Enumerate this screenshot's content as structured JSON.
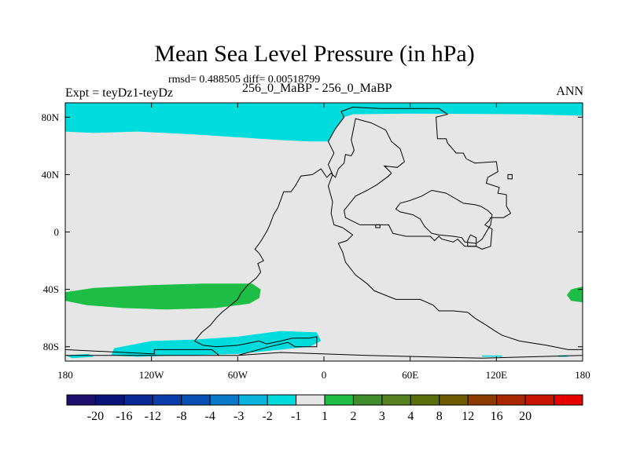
{
  "header": {
    "title": "Mean Sea Level Pressure (in hPa)",
    "stats": "rmsd= 0.488505 diff= 0.00518799",
    "experiment": "Expt = teyDz1-teyDz",
    "comparison": "256_0_MaBP - 256_0_MaBP",
    "season": "ANN"
  },
  "chart_data": {
    "type": "heatmap",
    "title": "Mean Sea Level Pressure (in hPa)",
    "xlim": [
      -180,
      180
    ],
    "ylim": [
      -90,
      90
    ],
    "xticks": [
      {
        "value": -180,
        "label": "180"
      },
      {
        "value": -120,
        "label": "120W"
      },
      {
        "value": -60,
        "label": "60W"
      },
      {
        "value": 0,
        "label": "0"
      },
      {
        "value": 60,
        "label": "60E"
      },
      {
        "value": 120,
        "label": "120E"
      },
      {
        "value": 180,
        "label": "180"
      }
    ],
    "yticks": [
      {
        "value": 80,
        "label": "80N"
      },
      {
        "value": 40,
        "label": "40N"
      },
      {
        "value": 0,
        "label": "0"
      },
      {
        "value": -40,
        "label": "40S"
      },
      {
        "value": -80,
        "label": "80S"
      }
    ],
    "background_color": "#e6e6e6",
    "coast_color": "#000000",
    "colorbar": {
      "colors": [
        "#1e0e6e",
        "#0a1478",
        "#0a2896",
        "#0a3caa",
        "#0a50b4",
        "#0a78c8",
        "#0ab4dc",
        "#00dcdc",
        "#e6e6e6",
        "#1ebe46",
        "#418c2d",
        "#55821e",
        "#5a6e0a",
        "#6e5a00",
        "#8c3c00",
        "#aa2800",
        "#c81400",
        "#e60000"
      ],
      "labels": [
        "-20",
        "-16",
        "-12",
        "-8",
        "-4",
        "-3",
        "-2",
        "-1",
        "1",
        "2",
        "3",
        "4",
        "8",
        "12",
        "16",
        "20"
      ]
    },
    "regions": [
      {
        "name": "arctic-cyan-region",
        "bin": "-2 to -1",
        "color": "#00dcdc",
        "points": [
          [
            -180,
            90
          ],
          [
            180,
            90
          ],
          [
            180,
            81
          ],
          [
            140,
            82
          ],
          [
            60,
            82.5
          ],
          [
            20,
            82
          ],
          [
            14,
            80
          ],
          [
            8,
            72
          ],
          [
            3,
            63
          ],
          [
            -8,
            63
          ],
          [
            -30,
            64
          ],
          [
            -60,
            66
          ],
          [
            -90,
            68
          ],
          [
            -130,
            70
          ],
          [
            -160,
            69
          ],
          [
            -180,
            70
          ]
        ]
      },
      {
        "name": "southern-ocean-green-region",
        "bin": "1 to 2",
        "color": "#1ebe46",
        "points": [
          [
            -180,
            -42
          ],
          [
            -160,
            -39
          ],
          [
            -120,
            -37
          ],
          [
            -85,
            -36
          ],
          [
            -50,
            -36
          ],
          [
            -44,
            -40
          ],
          [
            -45,
            -46
          ],
          [
            -52,
            -50
          ],
          [
            -75,
            -53
          ],
          [
            -110,
            -54
          ],
          [
            -140,
            -53
          ],
          [
            -165,
            -51
          ],
          [
            -180,
            -48
          ]
        ]
      },
      {
        "name": "east-edge-green-region",
        "bin": "1 to 2",
        "color": "#1ebe46",
        "points": [
          [
            180,
            -38
          ],
          [
            172,
            -40
          ],
          [
            169,
            -44
          ],
          [
            172,
            -48
          ],
          [
            180,
            -49
          ]
        ]
      },
      {
        "name": "antarctic-cyan-region",
        "bin": "-2 to -1",
        "color": "#00dcdc",
        "points": [
          [
            -148,
            -86
          ],
          [
            -146,
            -81
          ],
          [
            -120,
            -76
          ],
          [
            -90,
            -75
          ],
          [
            -60,
            -73
          ],
          [
            -30,
            -69
          ],
          [
            -5,
            -70
          ],
          [
            -2,
            -76
          ],
          [
            -10,
            -80
          ],
          [
            -30,
            -82
          ],
          [
            -60,
            -85
          ],
          [
            -100,
            -86
          ],
          [
            -130,
            -87
          ]
        ]
      },
      {
        "name": "small-cyan-patch-a",
        "bin": "-2 to -1",
        "color": "#00dcdc",
        "points": [
          [
            -180,
            -86
          ],
          [
            -164,
            -85
          ],
          [
            -160,
            -87
          ],
          [
            -175,
            -88
          ]
        ]
      },
      {
        "name": "small-cyan-patch-b",
        "bin": "-2 to -1",
        "color": "#00dcdc",
        "points": [
          [
            110,
            -86
          ],
          [
            124,
            -86
          ],
          [
            124,
            -87
          ],
          [
            110,
            -87
          ]
        ]
      },
      {
        "name": "small-cyan-patch-c",
        "bin": "-2 to -1",
        "color": "#00dcdc",
        "points": [
          [
            163,
            -86
          ],
          [
            170,
            -86
          ],
          [
            170,
            -87
          ],
          [
            163,
            -87
          ]
        ]
      }
    ],
    "coastlines": [
      {
        "name": "pangea-coastline",
        "closed": true,
        "points": [
          [
            12,
            84
          ],
          [
            20,
            87
          ],
          [
            40,
            86
          ],
          [
            80,
            86
          ],
          [
            86,
            82
          ],
          [
            78,
            80
          ],
          [
            79,
            65
          ],
          [
            85,
            65
          ],
          [
            86,
            62
          ],
          [
            92,
            55
          ],
          [
            97,
            55
          ],
          [
            99,
            51
          ],
          [
            105,
            48
          ],
          [
            120,
            49
          ],
          [
            121,
            42
          ],
          [
            114,
            38
          ],
          [
            113,
            34
          ],
          [
            122,
            31
          ],
          [
            121,
            27
          ],
          [
            127,
            26
          ],
          [
            127,
            18
          ],
          [
            130,
            13
          ],
          [
            125,
            10
          ],
          [
            116,
            10
          ],
          [
            115,
            8
          ],
          [
            112,
            5
          ],
          [
            117,
            2
          ],
          [
            116,
            -10
          ],
          [
            110,
            -12
          ],
          [
            106,
            -10
          ],
          [
            98,
            -10
          ],
          [
            93,
            -5
          ],
          [
            90,
            -7
          ],
          [
            82,
            -5
          ],
          [
            80,
            -3
          ],
          [
            77,
            -6
          ],
          [
            74,
            -3
          ],
          [
            57,
            -3
          ],
          [
            48,
            -1
          ],
          [
            45,
            5
          ],
          [
            25,
            5
          ],
          [
            15,
            10
          ],
          [
            14,
            15
          ],
          [
            22,
            25
          ],
          [
            30,
            29
          ],
          [
            37,
            33
          ],
          [
            45,
            39
          ],
          [
            47,
            41
          ],
          [
            42,
            46
          ],
          [
            51,
            45
          ],
          [
            56,
            49
          ],
          [
            53,
            58
          ],
          [
            47,
            63
          ],
          [
            43,
            71
          ],
          [
            33,
            76
          ],
          [
            22,
            79
          ],
          [
            19,
            64
          ],
          [
            21,
            57
          ],
          [
            19,
            53
          ],
          [
            15,
            54
          ],
          [
            14,
            48
          ],
          [
            10,
            44
          ],
          [
            8,
            38
          ],
          [
            5,
            41
          ],
          [
            2,
            38
          ],
          [
            -2,
            44
          ],
          [
            -8,
            40
          ],
          [
            -16,
            39
          ],
          [
            -20,
            32
          ],
          [
            -23,
            28
          ],
          [
            -28,
            28
          ],
          [
            -32,
            17
          ],
          [
            -35,
            12
          ],
          [
            -38,
            4
          ],
          [
            -40,
            0
          ],
          [
            -43,
            -5
          ],
          [
            -45,
            -8
          ],
          [
            -48,
            -12
          ],
          [
            -45,
            -15
          ],
          [
            -42,
            -20
          ],
          [
            -46,
            -22
          ],
          [
            -44,
            -28
          ],
          [
            -47,
            -32
          ],
          [
            -53,
            -37
          ],
          [
            -58,
            -43
          ],
          [
            -60,
            -47
          ],
          [
            -66,
            -52
          ],
          [
            -71,
            -56
          ],
          [
            -75,
            -60
          ],
          [
            -79,
            -65
          ],
          [
            -85,
            -70
          ],
          [
            -90,
            -76
          ],
          [
            -84,
            -79
          ],
          [
            -75,
            -80
          ],
          [
            -60,
            -79
          ],
          [
            -45,
            -76
          ],
          [
            -40,
            -78
          ],
          [
            -30,
            -76
          ],
          [
            -22,
            -74
          ],
          [
            -10,
            -74
          ],
          [
            -5,
            -73
          ],
          [
            -5,
            -80
          ],
          [
            -20,
            -80
          ],
          [
            -25,
            -77
          ],
          [
            -38,
            -80
          ],
          [
            -60,
            -86
          ],
          [
            -73,
            -86
          ],
          [
            -78,
            -82
          ],
          [
            -118,
            -82
          ],
          [
            -118,
            -85
          ],
          [
            -180,
            -82
          ],
          [
            -180,
            -86
          ],
          [
            -60,
            -86
          ],
          [
            -30,
            -84
          ],
          [
            30,
            -86
          ],
          [
            110,
            -88
          ],
          [
            180,
            -86
          ],
          [
            180,
            -82
          ],
          [
            170,
            -82
          ],
          [
            155,
            -79
          ],
          [
            136,
            -76
          ],
          [
            124,
            -72
          ],
          [
            119,
            -69
          ],
          [
            113,
            -65
          ],
          [
            105,
            -60
          ],
          [
            100,
            -56
          ],
          [
            90,
            -55
          ],
          [
            80,
            -55
          ],
          [
            76,
            -51
          ],
          [
            67,
            -47
          ],
          [
            50,
            -47
          ],
          [
            35,
            -41
          ],
          [
            30,
            -36
          ],
          [
            22,
            -30
          ],
          [
            15,
            -21
          ],
          [
            13,
            -14
          ],
          [
            10,
            -8
          ],
          [
            16,
            -6
          ],
          [
            20,
            -2
          ],
          [
            13,
            3
          ],
          [
            7,
            5
          ],
          [
            5,
            13
          ],
          [
            6,
            21
          ],
          [
            3,
            32
          ],
          [
            6,
            40
          ],
          [
            3,
            47
          ],
          [
            7,
            55
          ],
          [
            3,
            63
          ],
          [
            8,
            72
          ],
          [
            14,
            80
          ],
          [
            12,
            84
          ]
        ]
      },
      {
        "name": "inner-sea-coastline",
        "closed": true,
        "points": [
          [
            68,
            25
          ],
          [
            75,
            29
          ],
          [
            80,
            28
          ],
          [
            85,
            27
          ],
          [
            92,
            23
          ],
          [
            97,
            20
          ],
          [
            105,
            19
          ],
          [
            109,
            18
          ],
          [
            114,
            15
          ],
          [
            117,
            12
          ],
          [
            116,
            5
          ],
          [
            113,
            0
          ],
          [
            110,
            -5
          ],
          [
            106,
            -8
          ],
          [
            98,
            -7
          ],
          [
            96,
            -4
          ],
          [
            90,
            -3
          ],
          [
            80,
            -2
          ],
          [
            75,
            -1
          ],
          [
            70,
            4
          ],
          [
            67,
            9
          ],
          [
            62,
            12
          ],
          [
            53,
            14
          ],
          [
            50,
            16
          ],
          [
            53,
            20
          ],
          [
            60,
            22
          ],
          [
            68,
            25
          ]
        ]
      },
      {
        "name": "small-island-a",
        "closed": true,
        "points": [
          [
            100,
            -10
          ],
          [
            106,
            -10
          ],
          [
            106,
            -4
          ],
          [
            102,
            -2
          ],
          [
            100,
            -6
          ]
        ]
      },
      {
        "name": "small-island-b",
        "closed": true,
        "points": [
          [
            36,
            5
          ],
          [
            39,
            5
          ],
          [
            39,
            3
          ],
          [
            36,
            3
          ]
        ]
      },
      {
        "name": "small-island-c",
        "closed": true,
        "points": [
          [
            128,
            40
          ],
          [
            131,
            40
          ],
          [
            131,
            37
          ],
          [
            128,
            37
          ]
        ]
      }
    ]
  }
}
